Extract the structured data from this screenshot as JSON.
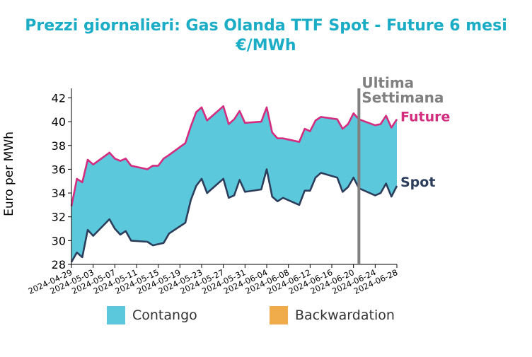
{
  "chart_data": {
    "type": "area",
    "title": "Prezzi giornalieri: Gas Olanda TTF Spot - Future 6 mesi",
    "subtitle": "€/MWh",
    "ylabel": "Euro per MWh",
    "xlabel": "",
    "ylim": [
      28,
      42.8
    ],
    "yticks": [
      28,
      30,
      32,
      34,
      36,
      38,
      40,
      42
    ],
    "xlim": [
      "2024-04-29",
      "2024-06-28"
    ],
    "xticks": [
      "2024-04-29",
      "2024-05-03",
      "2024-05-07",
      "2024-05-11",
      "2024-05-15",
      "2024-05-19",
      "2024-05-23",
      "2024-05-27",
      "2024-05-31",
      "2024-06-04",
      "2024-06-08",
      "2024-06-12",
      "2024-06-16",
      "2024-06-20",
      "2024-06-24",
      "2024-06-28"
    ],
    "grid": false,
    "x": [
      "2024-04-29",
      "2024-04-30",
      "2024-05-01",
      "2024-05-02",
      "2024-05-03",
      "2024-05-06",
      "2024-05-07",
      "2024-05-08",
      "2024-05-09",
      "2024-05-10",
      "2024-05-13",
      "2024-05-14",
      "2024-05-15",
      "2024-05-16",
      "2024-05-17",
      "2024-05-20",
      "2024-05-21",
      "2024-05-22",
      "2024-05-23",
      "2024-05-24",
      "2024-05-27",
      "2024-05-28",
      "2024-05-29",
      "2024-05-30",
      "2024-05-31",
      "2024-06-03",
      "2024-06-04",
      "2024-06-05",
      "2024-06-06",
      "2024-06-07",
      "2024-06-10",
      "2024-06-11",
      "2024-06-12",
      "2024-06-13",
      "2024-06-14",
      "2024-06-17",
      "2024-06-18",
      "2024-06-19",
      "2024-06-20",
      "2024-06-21",
      "2024-06-24",
      "2024-06-25",
      "2024-06-26",
      "2024-06-27",
      "2024-06-28"
    ],
    "series": [
      {
        "name": "Future",
        "color": "#d42c7e",
        "values": [
          32.9,
          35.2,
          34.9,
          36.8,
          36.4,
          37.4,
          36.9,
          36.7,
          36.9,
          36.3,
          36.0,
          36.3,
          36.3,
          36.9,
          37.2,
          38.2,
          39.6,
          40.8,
          41.2,
          40.1,
          41.3,
          39.8,
          40.2,
          40.9,
          39.9,
          40.0,
          41.2,
          39.1,
          38.6,
          38.6,
          38.3,
          39.4,
          39.2,
          40.1,
          40.4,
          40.2,
          39.4,
          39.8,
          40.7,
          40.2,
          39.7,
          39.8,
          40.5,
          39.5,
          40.2
        ]
      },
      {
        "name": "Spot",
        "color": "#2c3e5c",
        "values": [
          28.2,
          29.0,
          28.6,
          30.9,
          30.4,
          31.8,
          31.0,
          30.5,
          30.8,
          30.0,
          29.9,
          29.6,
          29.7,
          29.8,
          30.6,
          31.5,
          33.4,
          34.6,
          35.2,
          34.0,
          35.2,
          33.6,
          33.8,
          35.1,
          34.1,
          34.3,
          36.0,
          33.7,
          33.3,
          33.6,
          33.0,
          34.2,
          34.2,
          35.3,
          35.7,
          35.3,
          34.1,
          34.5,
          35.3,
          34.4,
          33.8,
          34.0,
          34.8,
          33.7,
          34.6
        ]
      }
    ],
    "annotation": {
      "x": "2024-06-21",
      "line1": "Ultima",
      "line2": "Settimana",
      "color": "#808080"
    },
    "end_labels": {
      "future": "Future",
      "spot": "Spot"
    },
    "legend": {
      "placement": "bottom",
      "items": [
        {
          "label": "Contango",
          "color": "#5bc8dc"
        },
        {
          "label": "Backwardation",
          "color": "#f0ac4b"
        }
      ]
    },
    "fill_colors": {
      "contango": "#5bc8dc",
      "backwardation": "#f0ac4b"
    }
  }
}
